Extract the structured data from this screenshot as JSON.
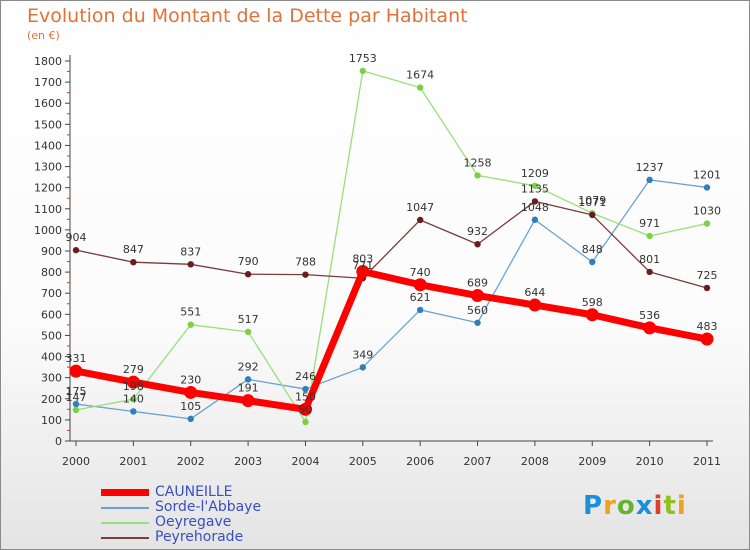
{
  "title": "Evolution du Montant de la Dette par Habitant",
  "subtitle": "(en €)",
  "brand": {
    "logo_text": "Proxiti",
    "colors": [
      "#1d8fd8",
      "#f0a020",
      "#66b32e",
      "#1d8fd8",
      "#e23d2a",
      "#8fbf20",
      "#f0a020"
    ]
  },
  "chart_data": {
    "type": "line",
    "title": "Evolution du Montant de la Dette par Habitant",
    "ylabel": "(en €)",
    "xlabel": "",
    "x": [
      "2000",
      "2001",
      "2002",
      "2003",
      "2004",
      "2005",
      "2006",
      "2007",
      "2008",
      "2009",
      "2010",
      "2011"
    ],
    "ylim": [
      0,
      1800
    ],
    "yticks": [
      0,
      100,
      200,
      300,
      400,
      500,
      600,
      700,
      800,
      900,
      1000,
      1100,
      1200,
      1300,
      1400,
      1500,
      1600,
      1700,
      1800
    ],
    "grid": false,
    "legend_position": "bottom-left",
    "series": [
      {
        "name": "CAUNEILLE",
        "color": "#ff0000",
        "values": [
          331,
          279,
          230,
          191,
          150,
          803,
          740,
          689,
          644,
          598,
          536,
          483
        ]
      },
      {
        "name": "Sorde-l'Abbaye",
        "color": "#6aa3cf",
        "values": [
          175,
          140,
          105,
          292,
          246,
          349,
          621,
          560,
          1048,
          848,
          1237,
          1201
        ]
      },
      {
        "name": "Oeyregave",
        "color": "#99e07a",
        "values": [
          147,
          198,
          551,
          517,
          90,
          1753,
          1674,
          1258,
          1209,
          1079,
          971,
          1030
        ]
      },
      {
        "name": "Peyrehorade",
        "color": "#7a3b3b",
        "values": [
          904,
          847,
          837,
          790,
          788,
          771,
          1047,
          932,
          1135,
          1071,
          801,
          725
        ]
      }
    ]
  }
}
